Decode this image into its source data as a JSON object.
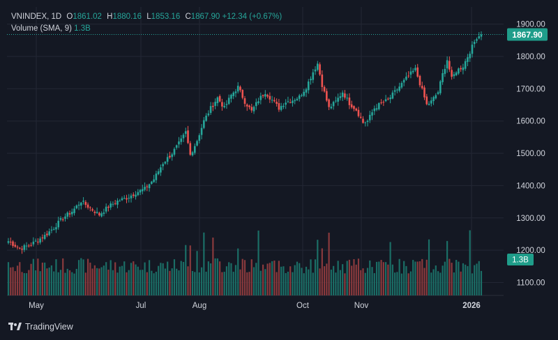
{
  "header": {
    "symbol": "VNINDEX",
    "interval": "1D",
    "o_label": "O",
    "o": "1861.02",
    "h_label": "H",
    "h": "1880.16",
    "l_label": "L",
    "l": "1853.16",
    "c_label": "C",
    "c": "1867.90",
    "change": "+12.34 (+0.67%)",
    "volume_label": "Volume (SMA, 9)",
    "volume_value": "1.3B"
  },
  "footer": {
    "brand": "TradingView"
  },
  "colors": {
    "up": "#26a69a",
    "down": "#ef5350",
    "up_vol": "#1b6e66",
    "down_vol": "#8a3a3d",
    "background": "#141823",
    "grid": "#232734",
    "text": "#d1d4dc"
  },
  "chart_data": {
    "type": "candlestick",
    "title": "",
    "x_ticks": [
      "May",
      "Jul",
      "Aug",
      "Oct",
      "Nov",
      "2026"
    ],
    "y_ticks": [
      "1100.00",
      "1200.00",
      "1300.00",
      "1400.00",
      "1500.00",
      "1600.00",
      "1700.00",
      "1800.00",
      "1900.00"
    ],
    "ylim": [
      1060,
      1910
    ],
    "last_price_label": "1867.90",
    "last_price": 1867.9,
    "volume_label_badge": "1.3B",
    "close_path": [
      [
        0,
        1228
      ],
      [
        5,
        1205
      ],
      [
        10,
        1218
      ],
      [
        16,
        1245
      ],
      [
        20,
        1270
      ],
      [
        24,
        1300
      ],
      [
        28,
        1320
      ],
      [
        32,
        1352
      ],
      [
        36,
        1330
      ],
      [
        40,
        1310
      ],
      [
        44,
        1335
      ],
      [
        48,
        1352
      ],
      [
        52,
        1362
      ],
      [
        56,
        1378
      ],
      [
        60,
        1390
      ],
      [
        64,
        1420
      ],
      [
        68,
        1470
      ],
      [
        72,
        1500
      ],
      [
        76,
        1540
      ],
      [
        78,
        1565
      ],
      [
        80,
        1495
      ],
      [
        83,
        1540
      ],
      [
        86,
        1600
      ],
      [
        89,
        1640
      ],
      [
        92,
        1672
      ],
      [
        95,
        1640
      ],
      [
        98,
        1680
      ],
      [
        101,
        1705
      ],
      [
        104,
        1660
      ],
      [
        107,
        1630
      ],
      [
        110,
        1665
      ],
      [
        113,
        1690
      ],
      [
        116,
        1665
      ],
      [
        119,
        1640
      ],
      [
        122,
        1660
      ],
      [
        125,
        1665
      ],
      [
        128,
        1675
      ],
      [
        131,
        1705
      ],
      [
        134,
        1752
      ],
      [
        136,
        1778
      ],
      [
        138,
        1712
      ],
      [
        141,
        1640
      ],
      [
        144,
        1660
      ],
      [
        147,
        1690
      ],
      [
        150,
        1655
      ],
      [
        153,
        1635
      ],
      [
        156,
        1595
      ],
      [
        158,
        1600
      ],
      [
        161,
        1640
      ],
      [
        164,
        1655
      ],
      [
        167,
        1665
      ],
      [
        170,
        1690
      ],
      [
        173,
        1715
      ],
      [
        176,
        1740
      ],
      [
        179,
        1760
      ],
      [
        182,
        1695
      ],
      [
        184,
        1650
      ],
      [
        186,
        1660
      ],
      [
        189,
        1690
      ],
      [
        191,
        1745
      ],
      [
        193,
        1790
      ],
      [
        195,
        1730
      ],
      [
        197,
        1755
      ],
      [
        200,
        1770
      ],
      [
        203,
        1815
      ],
      [
        206,
        1860
      ],
      [
        208,
        1867.9
      ]
    ],
    "volume_bars": 209,
    "volume_ylim": [
      0,
      3.0
    ]
  }
}
